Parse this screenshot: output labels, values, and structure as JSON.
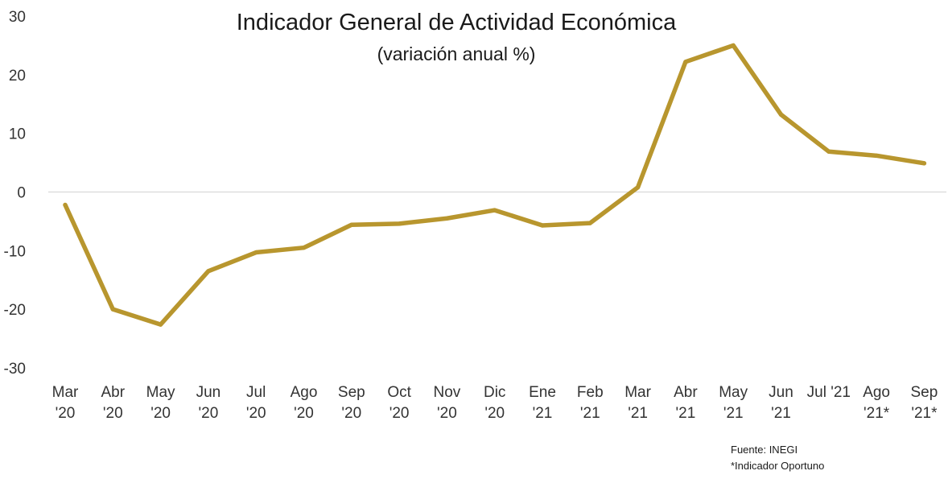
{
  "chart_data": {
    "type": "line",
    "title": "Indicador General de Actividad Económica",
    "subtitle": "(variación anual %)",
    "categories": [
      [
        "Mar",
        "'20"
      ],
      [
        "Abr",
        "'20"
      ],
      [
        "May",
        "'20"
      ],
      [
        "Jun",
        "'20"
      ],
      [
        "Jul",
        "'20"
      ],
      [
        "Ago",
        "'20"
      ],
      [
        "Sep",
        "'20"
      ],
      [
        "Oct",
        "'20"
      ],
      [
        "Nov",
        "'20"
      ],
      [
        "Dic",
        "'20"
      ],
      [
        "Ene",
        "'21"
      ],
      [
        "Feb",
        "'21"
      ],
      [
        "Mar",
        "'21"
      ],
      [
        "Abr",
        "'21"
      ],
      [
        "May",
        "'21"
      ],
      [
        "Jun",
        "'21"
      ],
      [
        "Jul '21"
      ],
      [
        "Ago",
        "'21*"
      ],
      [
        "Sep",
        "'21*"
      ]
    ],
    "series": [
      {
        "values": [
          -2.2,
          -20.0,
          -22.6,
          -13.5,
          -10.3,
          -9.5,
          -5.6,
          -5.4,
          -4.5,
          -3.1,
          -5.7,
          -5.3,
          0.8,
          22.2,
          25.0,
          13.2,
          6.9,
          6.2,
          4.9
        ],
        "color": "#b8962e"
      }
    ],
    "ylim": [
      -30,
      30
    ],
    "yticks": [
      -30,
      -20,
      -10,
      0,
      10,
      20,
      30
    ],
    "grid": false,
    "zero_line": true,
    "zero_line_color": "#d9d9d9",
    "legend": "none",
    "notes": [
      "Fuente: INEGI",
      "*Indicador Oportuno"
    ]
  }
}
